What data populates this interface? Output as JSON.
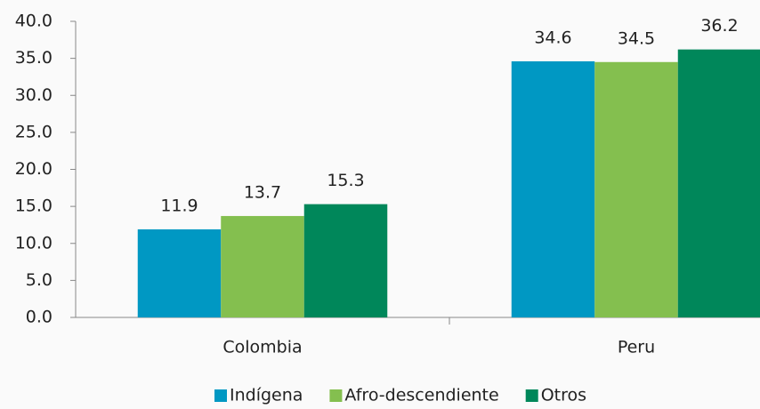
{
  "chart_data": {
    "type": "bar",
    "categories": [
      "Colombia",
      "Peru"
    ],
    "series": [
      {
        "name": "Indígena",
        "color": "#0098c3",
        "values": [
          11.9,
          34.6
        ]
      },
      {
        "name": "Afro-descendiente",
        "color": "#84bf4f",
        "values": [
          13.7,
          34.5
        ]
      },
      {
        "name": "Otros",
        "color": "#00875a",
        "values": [
          15.3,
          36.2
        ]
      }
    ],
    "ylim": [
      0,
      40
    ],
    "yticks": [
      {
        "value": 0,
        "label": "0.0"
      },
      {
        "value": 5,
        "label": "5.0"
      },
      {
        "value": 10,
        "label": "10.0"
      },
      {
        "value": 15,
        "label": "15.0"
      },
      {
        "value": 20,
        "label": "20.0"
      },
      {
        "value": 25,
        "label": "25.0"
      },
      {
        "value": 30,
        "label": "30.0"
      },
      {
        "value": 35,
        "label": "35.0"
      },
      {
        "value": 40,
        "label": "40.0"
      }
    ],
    "legend": "bottom"
  }
}
